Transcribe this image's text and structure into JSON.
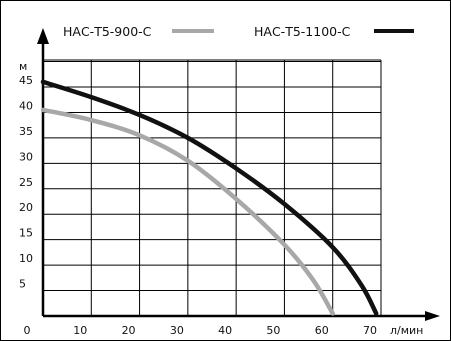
{
  "chart_data": {
    "type": "line",
    "xlabel": "л/мин",
    "ylabel": "м",
    "xlim": [
      0,
      70
    ],
    "ylim": [
      0,
      50
    ],
    "x_ticks": [
      "0",
      "10",
      "20",
      "30",
      "40",
      "50",
      "60",
      "70"
    ],
    "y_ticks": [
      "5",
      "10",
      "15",
      "20",
      "25",
      "30",
      "35",
      "40",
      "45"
    ],
    "grid": true,
    "legend_position": "top",
    "series": [
      {
        "name": "НАС-Т5-900-С",
        "color": "#a8a8a8",
        "points": [
          [
            0,
            40.5
          ],
          [
            10,
            38.5
          ],
          [
            20,
            35.5
          ],
          [
            30,
            30.5
          ],
          [
            40,
            23
          ],
          [
            50,
            14
          ],
          [
            56,
            7
          ],
          [
            60,
            0.5
          ]
        ]
      },
      {
        "name": "НАС-Т5-1100-С",
        "color": "#111111",
        "points": [
          [
            0,
            46
          ],
          [
            10,
            43
          ],
          [
            20,
            39.5
          ],
          [
            30,
            35
          ],
          [
            40,
            29
          ],
          [
            50,
            22
          ],
          [
            60,
            13.5
          ],
          [
            66,
            6
          ],
          [
            69,
            0.5
          ]
        ]
      }
    ]
  }
}
